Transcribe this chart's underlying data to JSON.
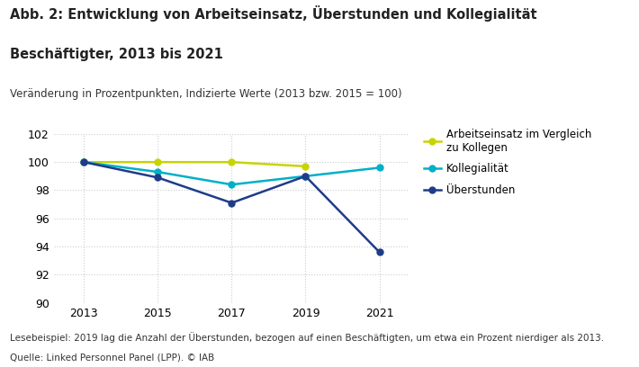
{
  "title_line1": "Abb. 2: Entwicklung von Arbeitseinsatz, Überstunden und Kollegialität",
  "title_line2": "Beschäftigter, 2013 bis 2021",
  "subtitle": "Veränderung in Prozentpunkten, Indizierte Werte (2013 bzw. 2015 = 100)",
  "footnote1": "Lesebeispiel: 2019 lag die Anzahl der Überstunden, bezogen auf einen Beschäftigten, um etwa ein Prozent nierdiger als 2013.",
  "footnote2": "Quelle: Linked Personnel Panel (LPP). © IAB",
  "years_arbeit": [
    2013,
    2015,
    2017,
    2019
  ],
  "values_arbeit": [
    100.0,
    100.0,
    100.0,
    99.7
  ],
  "years_kollegialitaet": [
    2013,
    2015,
    2017,
    2019,
    2021
  ],
  "values_kollegialitaet": [
    100.0,
    99.3,
    98.4,
    99.0,
    99.6
  ],
  "years_ueberstunden": [
    2013,
    2015,
    2017,
    2019,
    2021
  ],
  "values_ueberstunden": [
    100.0,
    98.9,
    97.1,
    99.0,
    93.6
  ],
  "color_arbeit": "#c8d400",
  "color_kollegialitaet": "#00b0c8",
  "color_ueberstunden": "#1f3c88",
  "legend_arbeit": "Arbeitseinsatz im Vergleich\nzu Kollegen",
  "legend_kollegialitaet": "Kollegialität",
  "legend_ueberstunden": "Überstunden",
  "ylim": [
    90,
    102
  ],
  "yticks": [
    90,
    92,
    94,
    96,
    98,
    100,
    102
  ],
  "xticks": [
    2013,
    2015,
    2017,
    2019,
    2021
  ],
  "background_color": "#ffffff",
  "grid_color": "#cccccc",
  "marker": "o",
  "markersize": 5,
  "linewidth": 1.8,
  "title_fontsize": 10.5,
  "subtitle_fontsize": 8.5,
  "tick_fontsize": 9,
  "legend_fontsize": 8.5,
  "footnote_fontsize": 7.5
}
